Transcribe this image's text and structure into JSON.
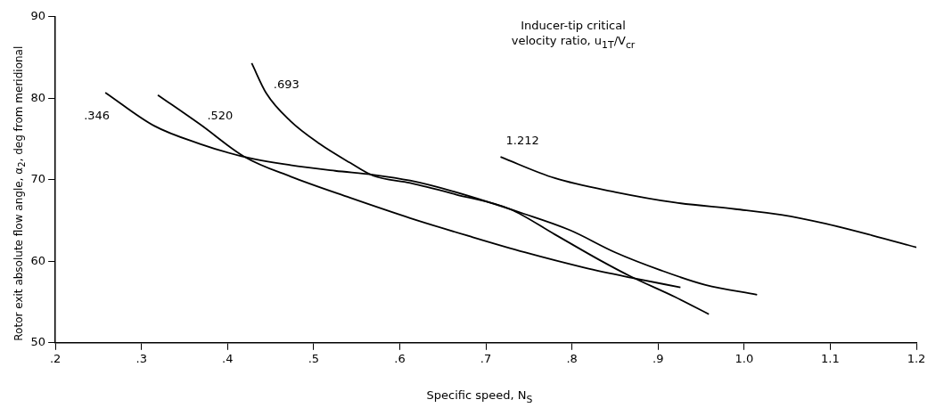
{
  "chart_data": {
    "type": "line",
    "xlabel": "Specific speed, N$_{S}$",
    "ylabel": "Rotor exit absolute flow angle, α$_{2}$, deg from meridional",
    "legend_title": "Inducer-tip critical velocity ratio, u$_{1T}$/V$_{cr}$",
    "xlim": [
      0.2,
      1.2
    ],
    "ylim": [
      50,
      90
    ],
    "xticks": [
      {
        "value": 0.2,
        "label": ".2"
      },
      {
        "value": 0.3,
        "label": ".3"
      },
      {
        "value": 0.4,
        "label": ".4"
      },
      {
        "value": 0.5,
        "label": ".5"
      },
      {
        "value": 0.6,
        "label": ".6"
      },
      {
        "value": 0.7,
        "label": ".7"
      },
      {
        "value": 0.8,
        "label": ".8"
      },
      {
        "value": 0.9,
        "label": ".9"
      },
      {
        "value": 1.0,
        "label": "1.0"
      },
      {
        "value": 1.1,
        "label": "1.1"
      },
      {
        "value": 1.2,
        "label": "1.2"
      }
    ],
    "yticks": [
      50,
      60,
      70,
      80,
      90
    ],
    "grid": false,
    "legend": false,
    "marker": "none",
    "line_style": "solid",
    "series": [
      {
        "name": ".346",
        "color": "#000000",
        "x": [
          0.258,
          0.315,
          0.368,
          0.416,
          0.473,
          0.525,
          0.57,
          0.612,
          0.661,
          0.745,
          0.798,
          0.85,
          0.903,
          0.955,
          1.015
        ],
        "values": [
          80.7,
          76.6,
          74.4,
          72.9,
          71.8,
          71.1,
          70.6,
          69.9,
          68.6,
          65.8,
          63.8,
          61.1,
          58.9,
          57.1,
          55.9
        ]
      },
      {
        "name": ".520",
        "color": "#000000",
        "x": [
          0.319,
          0.368,
          0.42,
          0.473,
          0.542,
          0.612,
          0.68,
          0.745,
          0.815,
          0.868,
          0.926
        ],
        "values": [
          80.4,
          76.8,
          72.8,
          70.4,
          67.8,
          65.3,
          63.1,
          61.1,
          59.2,
          58.0,
          56.8
        ]
      },
      {
        "name": ".693",
        "color": "#000000",
        "x": [
          0.428,
          0.445,
          0.473,
          0.507,
          0.542,
          0.569,
          0.612,
          0.665,
          0.728,
          0.78,
          0.833,
          0.867,
          0.92,
          0.959
        ],
        "values": [
          84.3,
          80.6,
          77.2,
          74.4,
          72.1,
          70.5,
          69.6,
          68.2,
          66.4,
          63.3,
          60.1,
          58.2,
          55.6,
          53.5
        ]
      },
      {
        "name": "1.212",
        "color": "#000000",
        "x": [
          0.717,
          0.78,
          0.85,
          0.92,
          0.99,
          1.043,
          1.095,
          1.148,
          1.2
        ],
        "values": [
          72.8,
          70.2,
          68.5,
          67.2,
          66.4,
          65.7,
          64.6,
          63.2,
          61.7
        ]
      }
    ]
  }
}
